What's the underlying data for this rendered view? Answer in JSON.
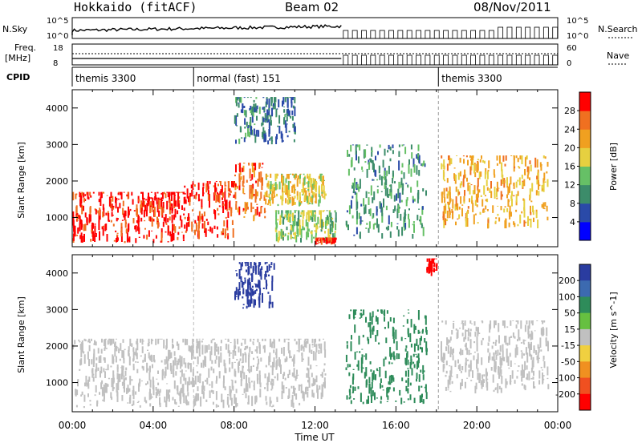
{
  "header": {
    "site": "Hokkaido (fitACF)",
    "beam": "Beam 02",
    "date": "08/Nov/2011"
  },
  "strips": {
    "nsky_label": "N.Sky",
    "nsky_ticks": [
      "10^5",
      "10^0"
    ],
    "nsearch_label": "N.Search",
    "nsearch_ticks": [
      "10^5",
      "10^0"
    ],
    "freq_label": "Freq.",
    "freq_unit": "[MHz]",
    "freq_ticks": [
      "18",
      "8"
    ],
    "nave_label": "Nave",
    "nave_ticks": [
      "60",
      "0"
    ],
    "cpid_label": "CPID",
    "cpid_segments": [
      {
        "label": "themis 3300",
        "start_h": 0,
        "end_h": 6
      },
      {
        "label": "normal (fast) 151",
        "start_h": 6,
        "end_h": 18.1
      },
      {
        "label": "themis 3300",
        "start_h": 18.1,
        "end_h": 24
      }
    ]
  },
  "chart_data": [
    {
      "type": "heatmap",
      "title": "Power",
      "xlabel": "Time UT",
      "ylabel": "Slant Range [km]",
      "xlim": [
        0,
        24
      ],
      "ylim": [
        200,
        4500
      ],
      "x_ticks": [
        "00:00",
        "04:00",
        "08:00",
        "12:00",
        "16:00",
        "20:00",
        "00:00"
      ],
      "y_ticks": [
        1000,
        2000,
        3000,
        4000
      ],
      "colorbar_label": "Power [dB]",
      "colorbar_ticks": [
        4,
        8,
        12,
        16,
        20,
        24,
        28
      ],
      "colorbar_range": [
        0,
        30
      ],
      "colors": [
        "#0000ff",
        "#2a4aa8",
        "#3c8c6a",
        "#66c066",
        "#e6d040",
        "#f0a020",
        "#f07020",
        "#ff0000"
      ],
      "regions": [
        {
          "t0": 0.0,
          "t1": 5.5,
          "r0": 300,
          "r1": 1700,
          "value": 28
        },
        {
          "t0": 5.5,
          "t1": 8.0,
          "r0": 400,
          "r1": 2000,
          "value": 27
        },
        {
          "t0": 8.0,
          "t1": 9.5,
          "r0": 800,
          "r1": 2500,
          "value": 24
        },
        {
          "t0": 9.5,
          "t1": 12.5,
          "r0": 1300,
          "r1": 2200,
          "value": 18
        },
        {
          "t0": 10.0,
          "t1": 13.0,
          "r0": 300,
          "r1": 1200,
          "value": 14
        },
        {
          "t0": 12.0,
          "t1": 13.0,
          "r0": 250,
          "r1": 450,
          "value": 28
        },
        {
          "t0": 8.0,
          "t1": 11.0,
          "r0": 3000,
          "r1": 4300,
          "value": 8
        },
        {
          "t0": 13.5,
          "t1": 17.5,
          "r0": 400,
          "r1": 3000,
          "value": 10
        },
        {
          "t0": 18.2,
          "t1": 23.5,
          "r0": 700,
          "r1": 2700,
          "value": 20
        }
      ]
    },
    {
      "type": "heatmap",
      "title": "Velocity",
      "xlabel": "Time UT",
      "ylabel": "Slant Range [km]",
      "xlim": [
        0,
        24
      ],
      "ylim": [
        200,
        4500
      ],
      "x_ticks": [
        "00:00",
        "04:00",
        "08:00",
        "12:00",
        "16:00",
        "20:00",
        "00:00"
      ],
      "y_ticks": [
        1000,
        2000,
        3000,
        4000
      ],
      "colorbar_label": "Velocity [m s^-1]",
      "colorbar_ticks": [
        "200",
        "100",
        "50",
        "15",
        "-15",
        "-50",
        "-100",
        "-200"
      ],
      "colors": [
        "#2a3ca0",
        "#3c6ab0",
        "#2e8c5a",
        "#66c040",
        "#c0c0c0",
        "#f0d040",
        "#f09020",
        "#f05020",
        "#ff0000"
      ],
      "regions": [
        {
          "t0": 0.0,
          "t1": 12.5,
          "r0": 300,
          "r1": 2200,
          "value": 0
        },
        {
          "t0": 8.0,
          "t1": 10.0,
          "r0": 3000,
          "r1": 4300,
          "value": 200
        },
        {
          "t0": 13.5,
          "t1": 17.5,
          "r0": 400,
          "r1": 3000,
          "value": 50
        },
        {
          "t0": 18.2,
          "t1": 23.5,
          "r0": 700,
          "r1": 2700,
          "value": 0
        },
        {
          "t0": 17.5,
          "t1": 18.0,
          "r0": 3900,
          "r1": 4400,
          "value": -200
        }
      ]
    }
  ]
}
